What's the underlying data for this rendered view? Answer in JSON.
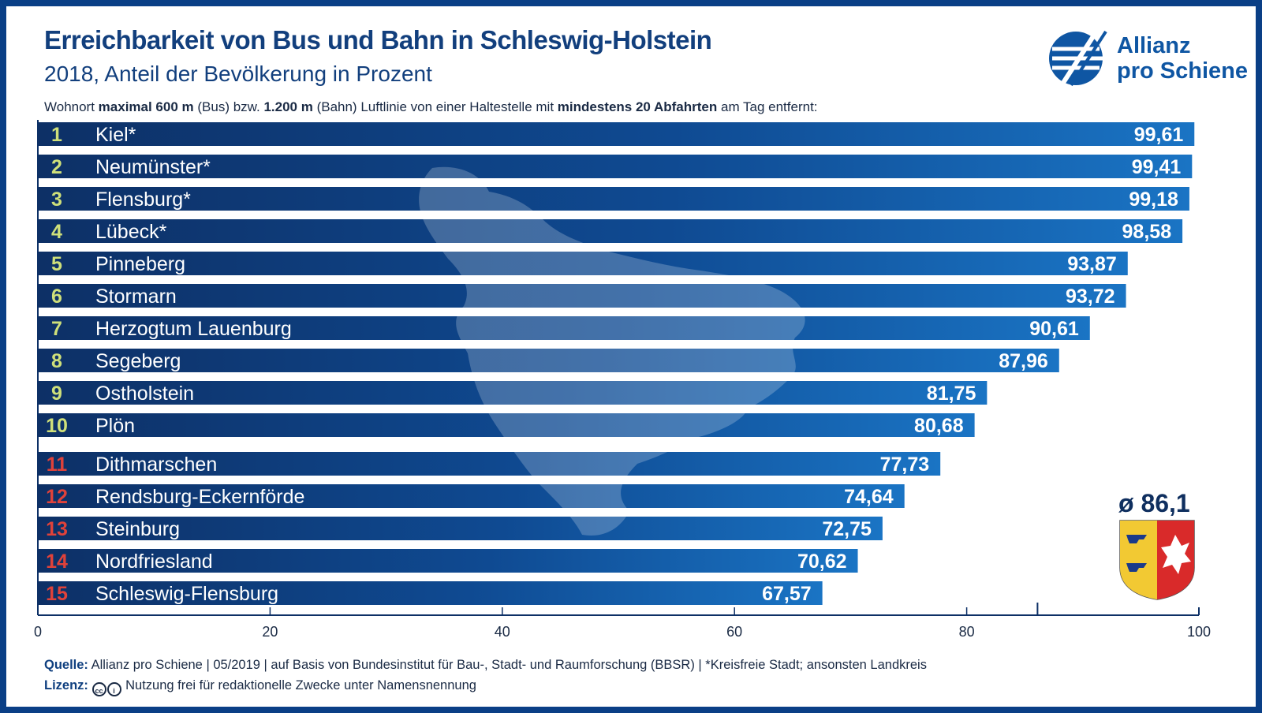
{
  "header": {
    "title": "Erreichbarkeit von Bus und Bahn in Schleswig-Holstein",
    "subtitle": "2018, Anteil der Bevölkerung in Prozent",
    "description": {
      "p1": "Wohnort ",
      "b1": "maximal 600 m",
      "p2": " (Bus) bzw. ",
      "b2": "1.200 m",
      "p3": " (Bahn) Luftlinie von einer Haltestelle mit ",
      "b3": "mindestens 20 Abfahrten",
      "p4": " am Tag entfernt:"
    }
  },
  "logo": {
    "line1": "Allianz",
    "line2": "pro Schiene",
    "icon": "allianz-pro-schiene-logo-icon"
  },
  "average": "ø 86,1",
  "coat_of_arms_icon": "schleswig-holstein-coat-of-arms-icon",
  "footer": {
    "source_label": "Quelle:",
    "source_text": " Allianz pro Schiene | 05/2019 | auf Basis von Bundesinstitut für Bau-, Stadt- und Raumforschung (BBSR) | *Kreisfreie Stadt; ansonsten Landkreis",
    "license_label": "Lizenz:",
    "license_text": " Nutzung frei für redaktionelle Zwecke unter Namensnennung"
  },
  "colors": {
    "bar_dark": "#0d3066",
    "bar_light": "#1a74c4",
    "rank_top10": "#cfe07a",
    "rank_bottom5": "#e0423a",
    "text_white": "#ffffff"
  },
  "chart_data": {
    "type": "bar",
    "orientation": "horizontal",
    "categories": [
      "Kiel*",
      "Neumünster*",
      "Flensburg*",
      "Lübeck*",
      "Pinneberg",
      "Stormarn",
      "Herzogtum Lauenburg",
      "Segeberg",
      "Ostholstein",
      "Plön",
      "Dithmarschen",
      "Rendsburg-Eckernförde",
      "Steinburg",
      "Nordfriesland",
      "Schleswig-Flensburg"
    ],
    "ranks": [
      "1",
      "2",
      "3",
      "4",
      "5",
      "6",
      "7",
      "8",
      "9",
      "10",
      "11",
      "12",
      "13",
      "14",
      "15"
    ],
    "values": [
      99.61,
      99.41,
      99.18,
      98.58,
      93.87,
      93.72,
      90.61,
      87.96,
      81.75,
      80.68,
      77.73,
      74.64,
      72.75,
      70.62,
      67.57
    ],
    "value_labels": [
      "99,61",
      "99,41",
      "99,18",
      "98,58",
      "93,87",
      "93,72",
      "90,61",
      "87,96",
      "81,75",
      "80,68",
      "77,73",
      "74,64",
      "72,75",
      "70,62",
      "67,57"
    ],
    "xlim": [
      0,
      100
    ],
    "x_ticks": [
      0,
      20,
      40,
      60,
      80,
      100
    ],
    "x_tick_labels": [
      "0",
      "20",
      "40",
      "60",
      "80",
      "100"
    ],
    "reference_line": 86.1,
    "grid": false,
    "title": "Erreichbarkeit von Bus und Bahn in Schleswig-Holstein",
    "subtitle": "2018, Anteil der Bevölkerung in Prozent"
  }
}
